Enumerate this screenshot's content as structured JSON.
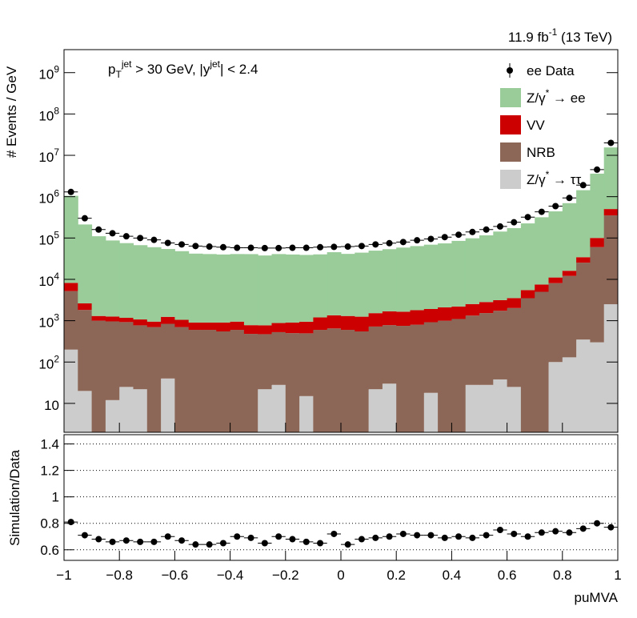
{
  "chart_data": [
    {
      "type": "stacked-histogram",
      "title": "11.9 fb^{-1} (13 TeV)",
      "annotation": "p_{T}^{jet} > 30 GeV,  |y^{jet}| < 2.4",
      "ylabel": "# Events / GeV",
      "log_y": true,
      "bins": [
        -1,
        -0.95,
        -0.9,
        -0.85,
        -0.8,
        -0.75,
        -0.7,
        -0.65,
        -0.6,
        -0.55,
        -0.5,
        -0.45,
        -0.4,
        -0.35,
        -0.3,
        -0.25,
        -0.2,
        -0.15,
        -0.1,
        -0.05,
        0,
        0.05,
        0.1,
        0.15,
        0.2,
        0.25,
        0.3,
        0.35,
        0.4,
        0.45,
        0.5,
        0.55,
        0.6,
        0.65,
        0.7,
        0.75,
        0.8,
        0.85,
        0.9,
        0.95,
        1
      ],
      "xlim": [
        -1,
        1
      ],
      "ylim": [
        2,
        3600000000
      ],
      "yticks": [
        10,
        {
          "value": 100,
          "label": "10^{2}"
        },
        {
          "value": 1000,
          "label": "10^{3}"
        },
        {
          "value": 10000,
          "label": "10^{4}"
        },
        {
          "value": 100000,
          "label": "10^{5}"
        },
        {
          "value": 1000000,
          "label": "10^{6}"
        },
        {
          "value": 10000000,
          "label": "10^{7}"
        },
        {
          "value": 100000000,
          "label": "10^{8}"
        },
        {
          "value": 1000000000,
          "label": "10^{9}"
        }
      ],
      "legend": "upper right",
      "data": {
        "name": "ee Data",
        "color": "#000000",
        "values": [
          1300000,
          300000,
          160000,
          130000,
          110000,
          100000,
          90000,
          76000,
          70000,
          64000,
          62000,
          60000,
          58000,
          58000,
          57000,
          57000,
          58000,
          58000,
          60000,
          61000,
          62000,
          64000,
          70000,
          75000,
          80000,
          88000,
          95000,
          105000,
          120000,
          140000,
          160000,
          190000,
          240000,
          320000,
          430000,
          590000,
          930000,
          1900000,
          4500000,
          20000000
        ]
      },
      "series": [
        {
          "name": "Z/γ^{*} → ττ",
          "color": "#cccccc",
          "values": [
            200,
            20,
            0,
            12,
            25,
            22,
            0,
            40,
            0,
            0,
            0,
            0,
            0,
            0,
            22,
            28,
            0,
            15,
            0,
            0,
            0,
            0,
            22,
            30,
            0,
            0,
            18,
            0,
            0,
            28,
            28,
            38,
            25,
            0,
            0,
            100,
            130,
            350,
            300,
            2500
          ]
        },
        {
          "name": "NRB",
          "color": "#8c6656",
          "values": [
            5000,
            1800,
            1000,
            950,
            900,
            750,
            700,
            800,
            700,
            600,
            600,
            550,
            600,
            480,
            450,
            500,
            500,
            480,
            600,
            650,
            600,
            550,
            700,
            750,
            750,
            800,
            900,
            1000,
            1100,
            1300,
            1500,
            1700,
            2000,
            3500,
            5000,
            8000,
            12000,
            25000,
            60000,
            350000
          ]
        },
        {
          "name": "VV",
          "color": "#cc0000",
          "values": [
            3000,
            800,
            300,
            300,
            250,
            300,
            250,
            400,
            350,
            300,
            300,
            350,
            350,
            300,
            300,
            350,
            400,
            450,
            600,
            700,
            700,
            700,
            800,
            900,
            900,
            1000,
            1000,
            1100,
            1100,
            1200,
            1300,
            1400,
            1500,
            2000,
            2500,
            3000,
            4000,
            9000,
            40000,
            150000
          ]
        },
        {
          "name": "Z/γ^{*} → ee",
          "color": "#99cc99",
          "values": [
            1040000,
            210000,
            109000,
            86000,
            74000,
            66000,
            59000,
            53000,
            47000,
            41000,
            40000,
            39000,
            40000,
            40000,
            37000,
            40000,
            39000,
            38000,
            39000,
            44000,
            40000,
            43000,
            48000,
            52000,
            57000,
            62000,
            67000,
            72000,
            83000,
            96000,
            113000,
            140000,
            170000,
            220000,
            310000,
            430000,
            680000,
            1400000,
            3500000,
            15000000
          ]
        }
      ]
    },
    {
      "type": "ratio",
      "ylabel": "Simulation/Data",
      "xlabel": "puMVA",
      "xlim": [
        -1,
        1
      ],
      "xticks": [
        {
          "value": -1,
          "label": "−1"
        },
        {
          "value": -0.8,
          "label": "−0.8"
        },
        {
          "value": -0.6,
          "label": "−0.6"
        },
        {
          "value": -0.4,
          "label": "−0.4"
        },
        {
          "value": -0.2,
          "label": "−0.2"
        },
        0,
        0.2,
        0.4,
        0.6,
        0.8,
        1
      ],
      "ylim": [
        0.52,
        1.47
      ],
      "yticks": [
        0.6,
        0.8,
        1,
        1.2,
        1.4
      ],
      "grid": true,
      "color": "#000000",
      "x": [
        -0.975,
        -0.925,
        -0.875,
        -0.825,
        -0.775,
        -0.725,
        -0.675,
        -0.625,
        -0.575,
        -0.525,
        -0.475,
        -0.425,
        -0.375,
        -0.325,
        -0.275,
        -0.225,
        -0.175,
        -0.125,
        -0.075,
        -0.025,
        0.025,
        0.075,
        0.125,
        0.175,
        0.225,
        0.275,
        0.325,
        0.375,
        0.425,
        0.475,
        0.525,
        0.575,
        0.625,
        0.675,
        0.725,
        0.775,
        0.825,
        0.875,
        0.925,
        0.975
      ],
      "values": [
        0.81,
        0.71,
        0.68,
        0.66,
        0.67,
        0.66,
        0.66,
        0.7,
        0.67,
        0.64,
        0.64,
        0.65,
        0.7,
        0.69,
        0.65,
        0.7,
        0.68,
        0.66,
        0.65,
        0.72,
        0.64,
        0.68,
        0.69,
        0.7,
        0.72,
        0.71,
        0.71,
        0.69,
        0.7,
        0.69,
        0.71,
        0.75,
        0.72,
        0.7,
        0.73,
        0.74,
        0.73,
        0.76,
        0.8,
        0.77
      ]
    }
  ]
}
